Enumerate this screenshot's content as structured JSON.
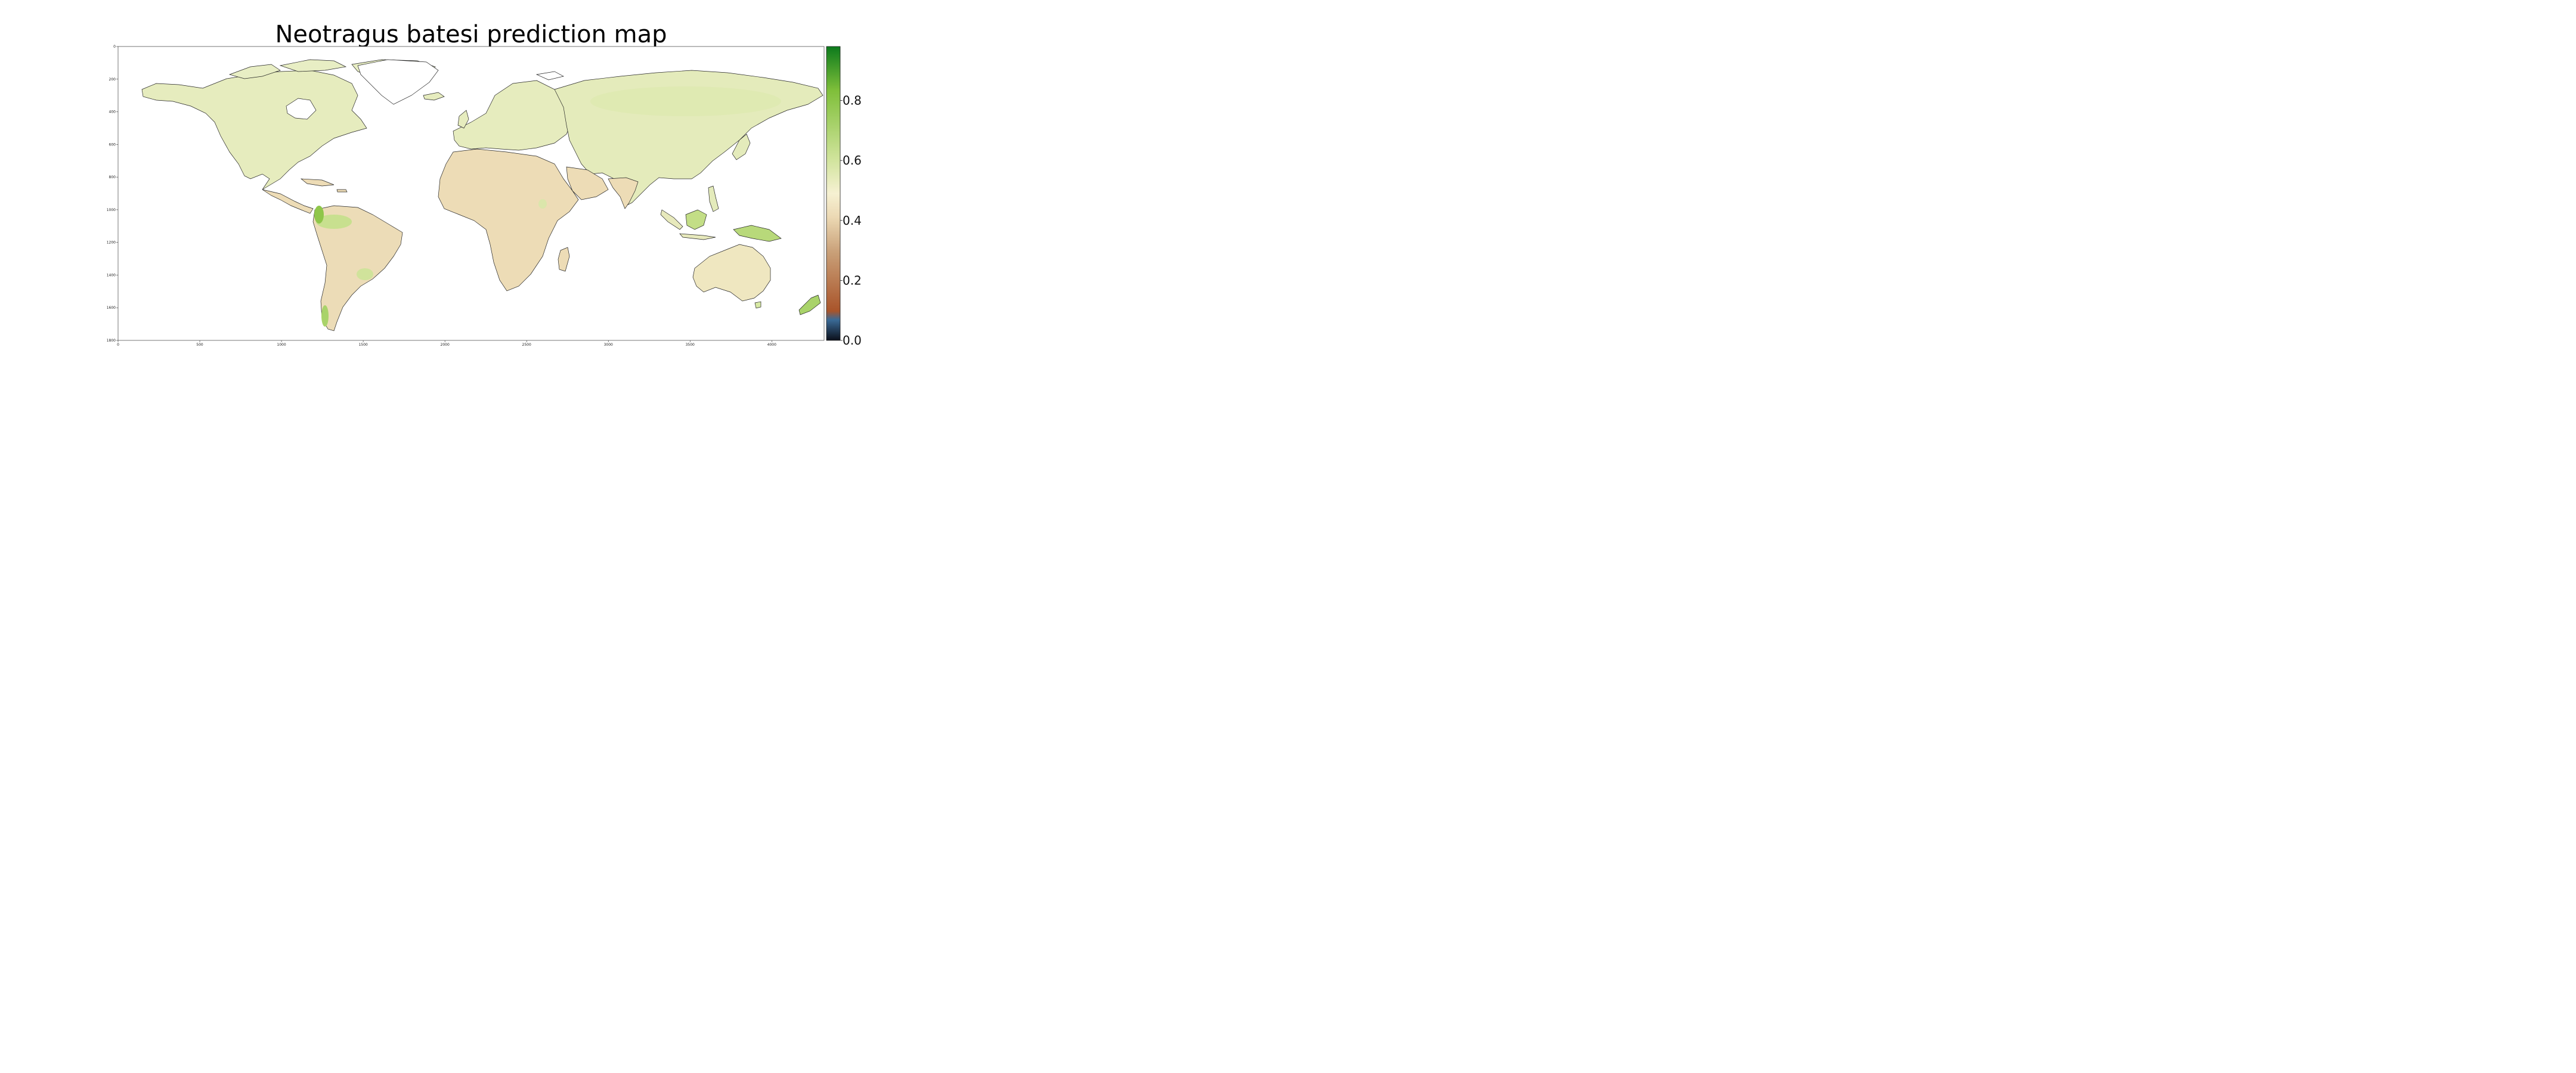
{
  "title": "Neotragus batesi prediction map",
  "map": {
    "type": "raster-map",
    "x_ticks": [
      "0",
      "500",
      "1000",
      "1500",
      "2000",
      "2500",
      "3000",
      "3500",
      "4000"
    ],
    "y_ticks": [
      "0",
      "200",
      "400",
      "600",
      "800",
      "1000",
      "1200",
      "1400",
      "1600",
      "1800"
    ],
    "xlim": [
      0,
      4320
    ],
    "ylim": [
      0,
      1800
    ],
    "y_inverted": true
  },
  "colorbar": {
    "ticks": [
      "0.0",
      "0.2",
      "0.4",
      "0.6",
      "0.8"
    ],
    "range": [
      0,
      0.98
    ],
    "colors": {
      "stop_0": "#0b0f1a",
      "stop_1": "#3a6a96",
      "stop_2": "#a9542a",
      "stop_3": "#c9a078",
      "stop_4": "#ecd9b4",
      "stop_5": "#f6f1d2",
      "stop_6": "#cfe39a",
      "stop_7": "#7fbf3a",
      "stop_8": "#0c7a1c"
    }
  },
  "colors": {
    "land_low": "#f0dfbe",
    "land_mid": "#edeec0",
    "land_high": "#d6e7a4",
    "land_peak": "#a9d36a",
    "coast": "#222222"
  }
}
